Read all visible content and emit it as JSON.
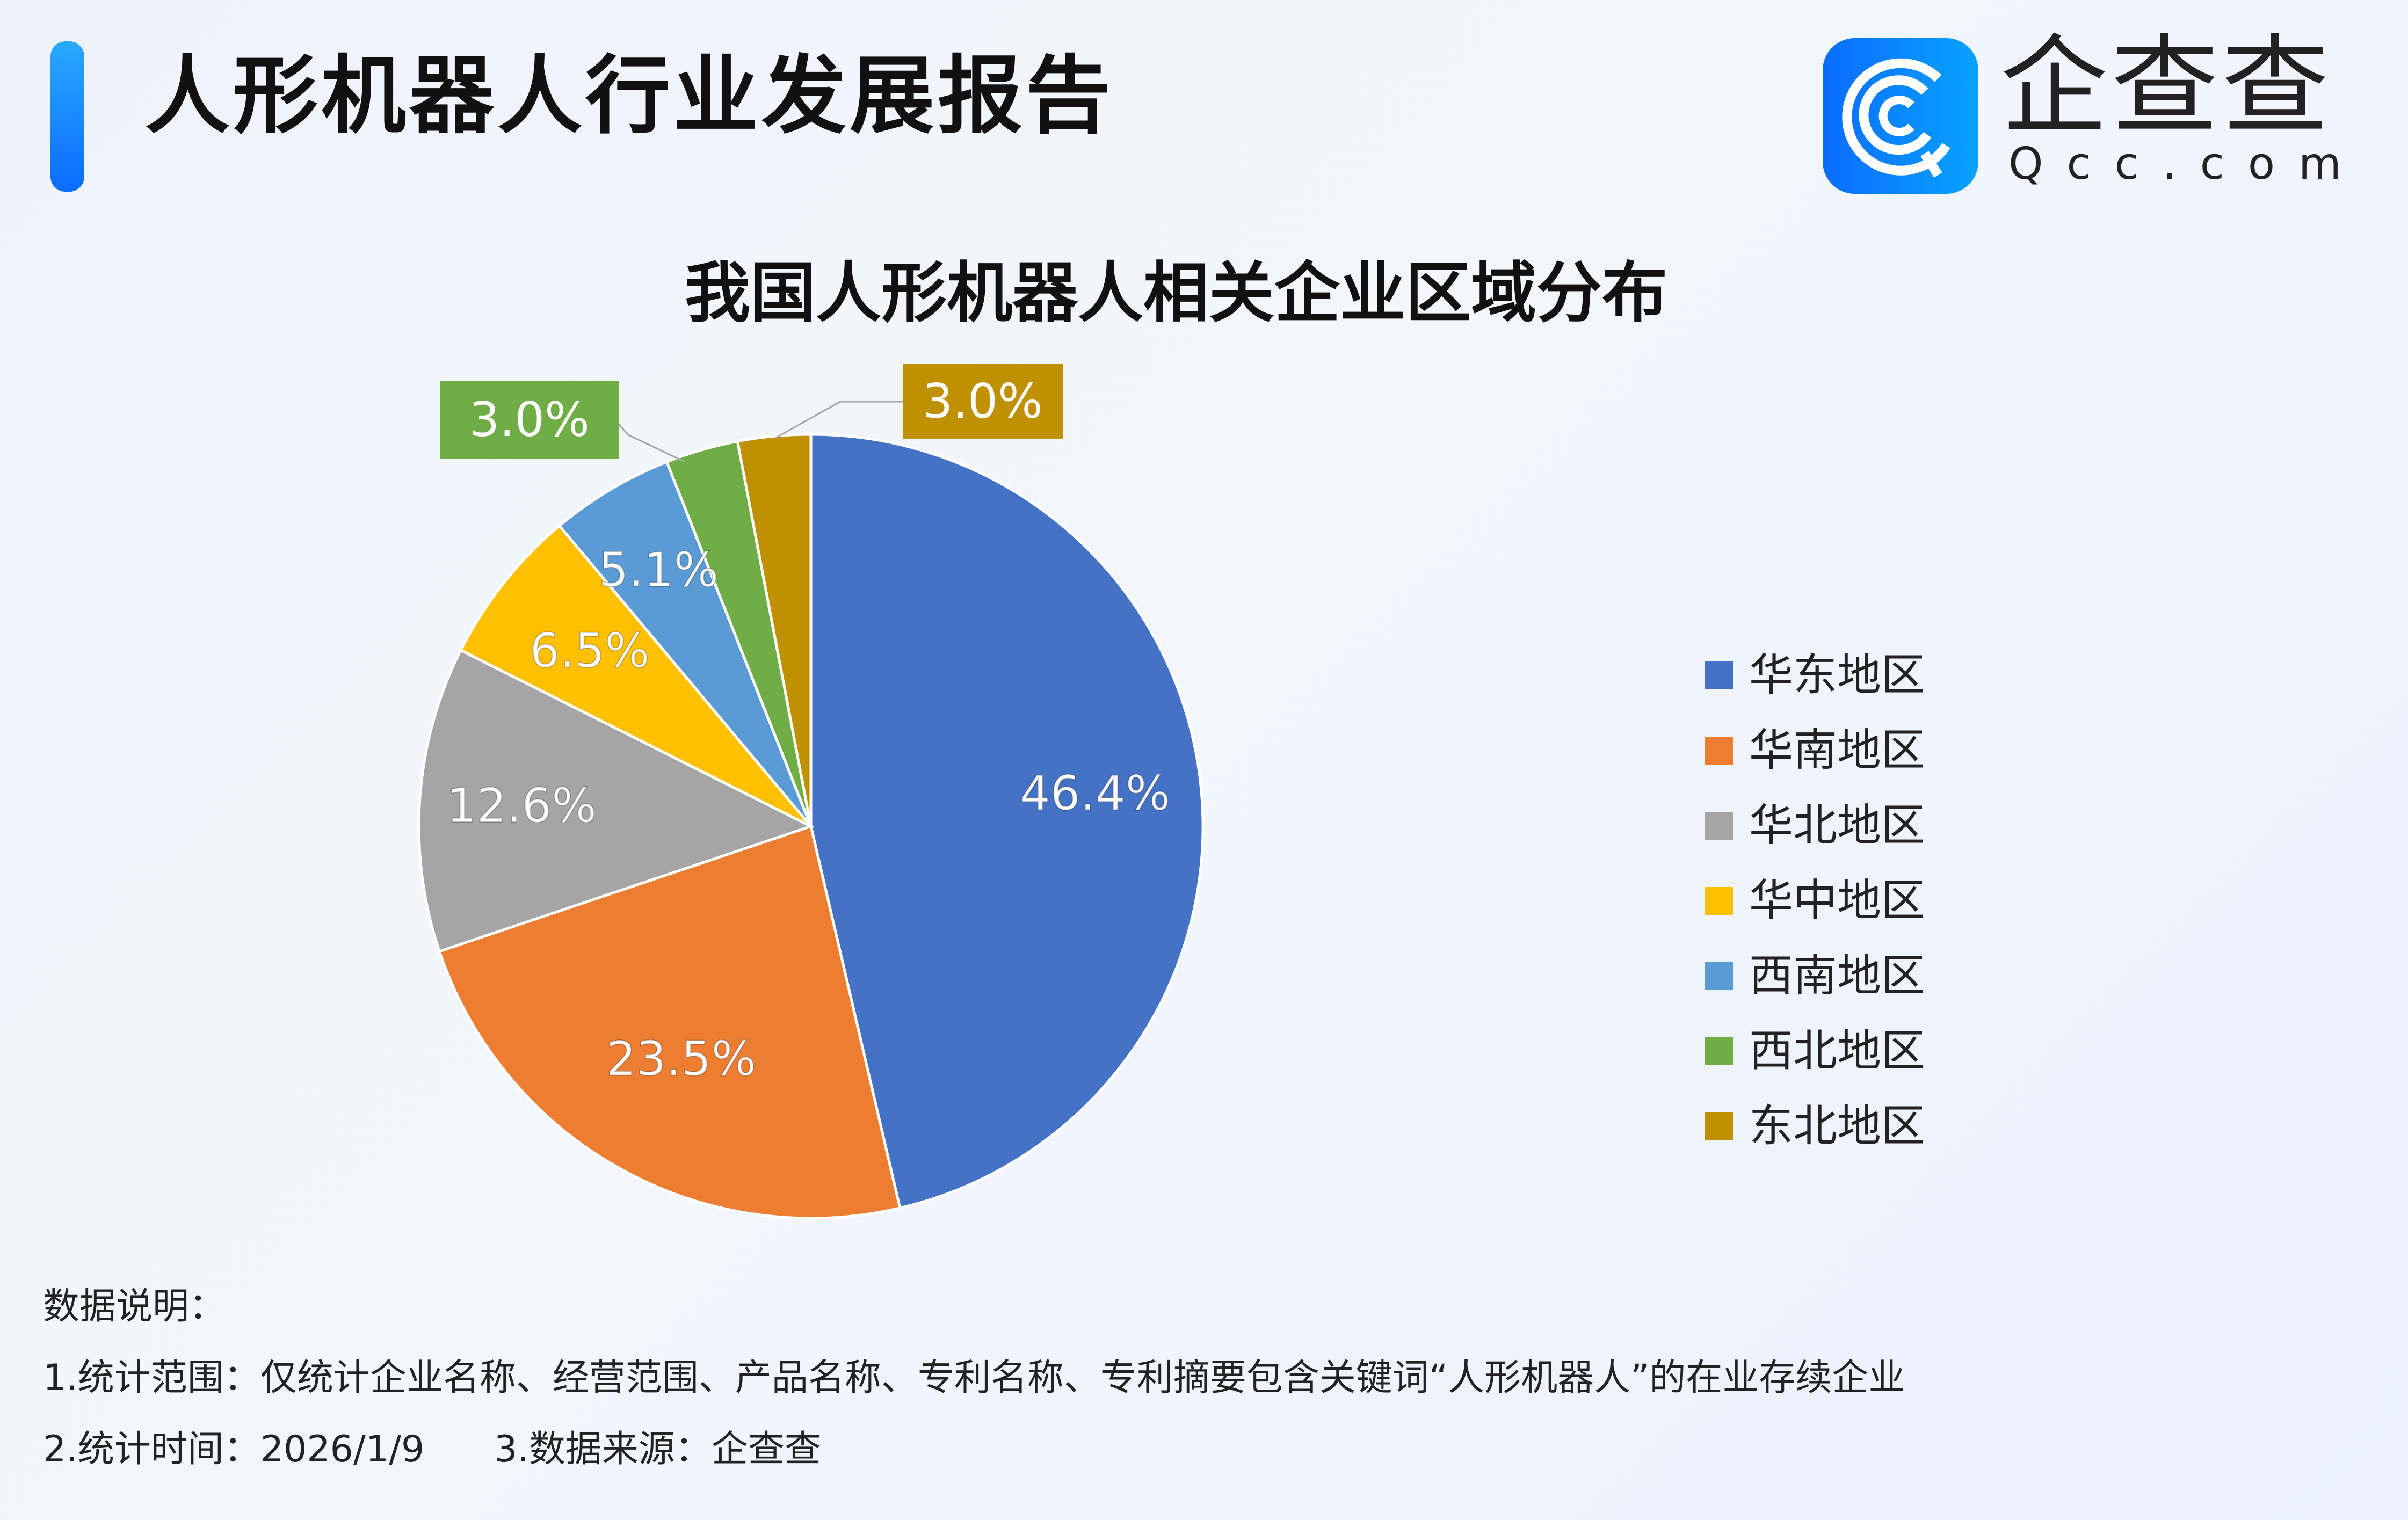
{
  "header": {
    "title": "人形机器人行业发展报告",
    "logo_cn": "企查查",
    "logo_en": "Qcc.com",
    "accent_color": "#1a8cff"
  },
  "chart_data": {
    "type": "pie",
    "title": "我国人形机器人相关企业区域分布",
    "categories": [
      "华东地区",
      "华南地区",
      "华北地区",
      "华中地区",
      "西南地区",
      "西北地区",
      "东北地区"
    ],
    "values": [
      46.4,
      23.5,
      12.6,
      6.5,
      5.1,
      3.0,
      3.0
    ],
    "labels": [
      "46.4%",
      "23.5%",
      "12.6%",
      "6.5%",
      "5.1%",
      "3.0%",
      "3.0%"
    ],
    "colors": [
      "#4472c4",
      "#ed7d31",
      "#a5a5a5",
      "#ffc000",
      "#5b9bd5",
      "#70ad47",
      "#bf9000"
    ],
    "start": "top",
    "direction": "clockwise",
    "legend_position": "right"
  },
  "notes": {
    "heading": "数据说明：",
    "line1": "1.统计范围：仅统计企业名称、经营范围、产品名称、专利名称、专利摘要包含关键词“人形机器人”的在业存续企业",
    "line2": "2.统计时间：2026/1/9      3.数据来源：企查查"
  }
}
